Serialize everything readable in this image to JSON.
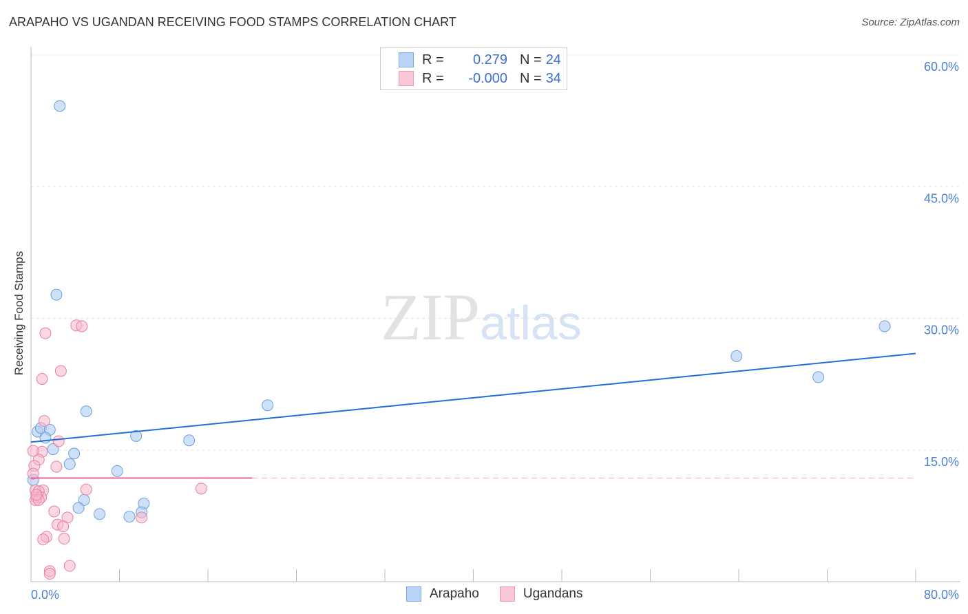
{
  "chart_data": {
    "type": "scatter",
    "title": "ARAPAHO VS UGANDAN RECEIVING FOOD STAMPS CORRELATION CHART",
    "source": "Source: ZipAtlas.com",
    "ylabel": "Receiving Food Stamps",
    "xlabel": "",
    "xlim": [
      0,
      80
    ],
    "ylim": [
      0,
      60
    ],
    "x_tick_labels": [
      "0.0%",
      "80.0%"
    ],
    "y_ticks": [
      15,
      30,
      45,
      60
    ],
    "y_tick_labels": [
      "15.0%",
      "30.0%",
      "45.0%",
      "60.0%"
    ],
    "grid": true,
    "legend": {
      "placement": "top-center",
      "entries": [
        {
          "r_label": "R =",
          "r": "0.279",
          "n_label": "N =",
          "n": "24"
        },
        {
          "r_label": "R =",
          "r": "-0.000",
          "n_label": "N =",
          "n": "34"
        }
      ]
    },
    "watermark": {
      "zip": "ZIP",
      "atlas": "atlas"
    },
    "series": [
      {
        "name": "Arapaho",
        "color": "#6a9fe0",
        "fill": "#a8c8f0",
        "line_color": "#1f6fd8",
        "trend": {
          "x": [
            0,
            80
          ],
          "y": [
            15.9,
            26.0
          ]
        },
        "points": [
          [
            2.6,
            54.2
          ],
          [
            2.3,
            32.7
          ],
          [
            5.0,
            19.4
          ],
          [
            0.6,
            17.1
          ],
          [
            0.9,
            17.5
          ],
          [
            1.7,
            17.3
          ],
          [
            1.3,
            16.4
          ],
          [
            2.0,
            15.1
          ],
          [
            3.9,
            14.6
          ],
          [
            3.5,
            13.4
          ],
          [
            0.2,
            11.6
          ],
          [
            7.8,
            12.6
          ],
          [
            9.5,
            16.6
          ],
          [
            14.3,
            16.1
          ],
          [
            21.4,
            20.1
          ],
          [
            4.8,
            9.3
          ],
          [
            4.3,
            8.4
          ],
          [
            6.2,
            7.7
          ],
          [
            8.9,
            7.4
          ],
          [
            10.2,
            8.9
          ],
          [
            10.0,
            7.9
          ],
          [
            63.8,
            25.7
          ],
          [
            71.2,
            23.3
          ],
          [
            77.2,
            29.1
          ]
        ]
      },
      {
        "name": "Ugandans",
        "color": "#e77fa0",
        "fill": "#f5b8cb",
        "line_color": "#e8648f",
        "trend": {
          "x": [
            0,
            80
          ],
          "y": [
            11.8,
            11.8
          ],
          "solid_until": 20
        },
        "points": [
          [
            4.1,
            29.2
          ],
          [
            4.6,
            29.1
          ],
          [
            1.3,
            28.3
          ],
          [
            2.7,
            24.0
          ],
          [
            1.0,
            23.1
          ],
          [
            1.2,
            18.3
          ],
          [
            2.5,
            16.0
          ],
          [
            1.0,
            14.8
          ],
          [
            0.7,
            13.9
          ],
          [
            0.3,
            13.2
          ],
          [
            2.3,
            13.1
          ],
          [
            0.2,
            12.3
          ],
          [
            15.4,
            10.6
          ],
          [
            5.0,
            10.5
          ],
          [
            1.1,
            10.4
          ],
          [
            0.4,
            10.4
          ],
          [
            0.7,
            10.3
          ],
          [
            0.5,
            9.6
          ],
          [
            0.9,
            9.6
          ],
          [
            0.4,
            9.3
          ],
          [
            0.7,
            9.3
          ],
          [
            2.1,
            8.0
          ],
          [
            3.3,
            7.3
          ],
          [
            10.0,
            7.3
          ],
          [
            2.4,
            6.5
          ],
          [
            2.9,
            6.3
          ],
          [
            1.4,
            5.1
          ],
          [
            1.1,
            4.8
          ],
          [
            3.0,
            4.9
          ],
          [
            3.5,
            1.8
          ],
          [
            1.7,
            1.2
          ],
          [
            1.7,
            0.9
          ],
          [
            0.2,
            14.9
          ],
          [
            0.5,
            9.9
          ]
        ]
      }
    ]
  }
}
